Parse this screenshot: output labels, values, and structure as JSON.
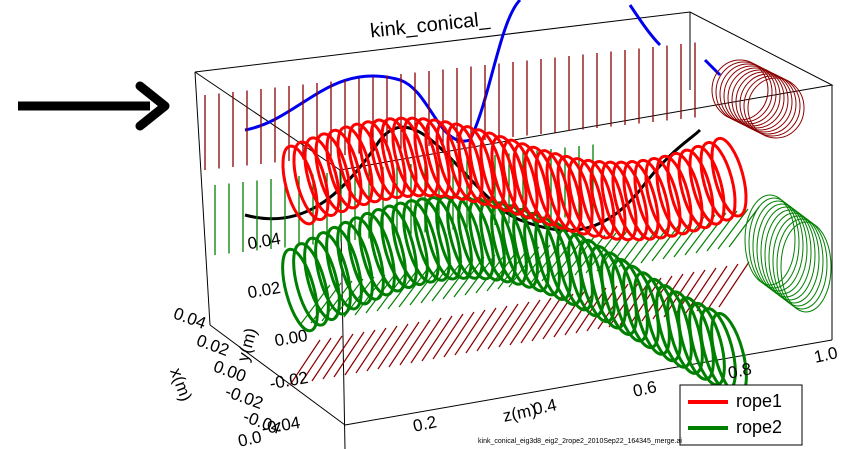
{
  "title": "kink_conical_",
  "z_axis": {
    "label": "z(m)",
    "ticks": [
      "0.0",
      "0.2",
      "0.4",
      "0.6",
      "0.8",
      "1.0"
    ]
  },
  "x_axis": {
    "label": "x(m)",
    "ticks": [
      "0.04",
      "0.02",
      "0.00",
      "-0.02",
      "-0.04"
    ]
  },
  "y_axis": {
    "label": "y(m)",
    "ticks": [
      "0.04",
      "0.02",
      "0.00",
      "-0.02",
      "-0.04"
    ]
  },
  "legend": [
    {
      "name": "rope1",
      "color": "#ff0000"
    },
    {
      "name": "rope2",
      "color": "#008000"
    }
  ],
  "footnote": "kink_conical_eig3d8_eig2_2rope2_2010Sep22_164345_merge.ai"
}
